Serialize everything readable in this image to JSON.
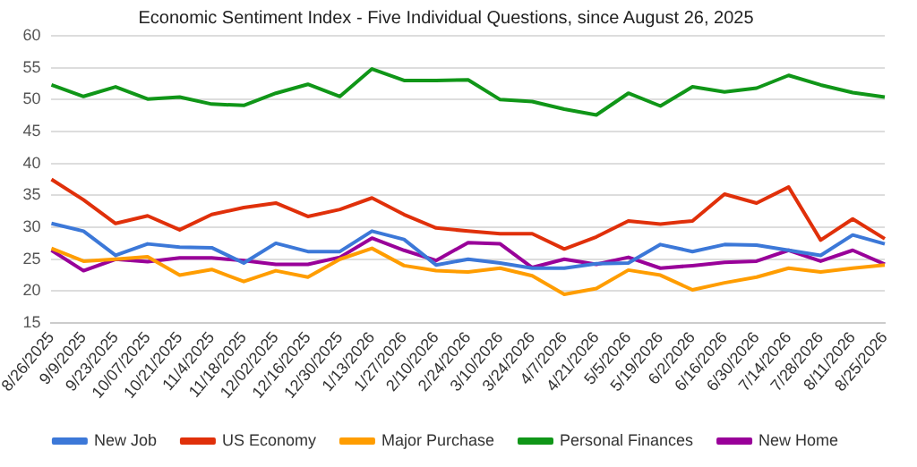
{
  "chart_data": {
    "type": "line",
    "title": "Economic Sentiment Index - Five Individual Questions, since August 26, 2025",
    "categories": [
      "8/26/2025",
      "9/9/2025",
      "9/23/2025",
      "10/07/2025",
      "10/21/2025",
      "11/4/2025",
      "11/18/2025",
      "12/02/2025",
      "12/16/2025",
      "12/30/2025",
      "1/13/2026",
      "1/27/2026",
      "2/10/2026",
      "2/24/2026",
      "3/10/2026",
      "3/24/2026",
      "4/7/2026",
      "4/21/2026",
      "5/5/2026",
      "5/19/2026",
      "6/2/2026",
      "6/16/2026",
      "6/30/2026",
      "7/14/2026",
      "7/28/2026",
      "8/11/2026",
      "8/25/2026"
    ],
    "series": [
      {
        "name": "New Job",
        "color": "#3c78d8",
        "values": [
          30.6,
          29.4,
          25.6,
          27.4,
          26.9,
          26.8,
          24.4,
          27.5,
          26.2,
          26.2,
          29.4,
          28.1,
          24.1,
          25,
          24.4,
          23.6,
          23.6,
          24.3,
          24.4,
          27.3,
          26.2,
          27.3,
          27.2,
          26.4,
          25.6,
          28.8,
          27.4
        ]
      },
      {
        "name": "US Economy",
        "color": "#e0300a",
        "values": [
          37.5,
          34.3,
          30.6,
          31.8,
          29.6,
          32,
          33.1,
          33.8,
          31.7,
          32.8,
          34.6,
          32,
          29.9,
          29.4,
          29,
          29,
          26.6,
          28.5,
          31,
          30.5,
          31,
          35.2,
          33.8,
          36.3,
          28,
          31.3,
          28.2
        ]
      },
      {
        "name": "Major Purchase",
        "color": "#ff9d00",
        "values": [
          26.7,
          24.7,
          25,
          25.4,
          22.5,
          23.4,
          21.5,
          23.2,
          22.2,
          25,
          26.7,
          24,
          23.2,
          23,
          23.6,
          22.4,
          19.5,
          20.4,
          23.3,
          22.5,
          20.2,
          21.3,
          22.2,
          23.6,
          23,
          23.6,
          24.1
        ]
      },
      {
        "name": "Personal Finances",
        "color": "#109618",
        "values": [
          52.3,
          50.5,
          52,
          50.1,
          50.4,
          49.3,
          49.1,
          51,
          52.4,
          50.5,
          54.8,
          53,
          53,
          53.1,
          50,
          49.7,
          48.5,
          47.6,
          51,
          49,
          52,
          51.2,
          51.8,
          53.8,
          52.3,
          51.1,
          50.4
        ]
      },
      {
        "name": "New Home",
        "color": "#990099",
        "values": [
          26.4,
          23.2,
          25,
          24.6,
          25.2,
          25.2,
          24.8,
          24.2,
          24.2,
          25.3,
          28.3,
          26.4,
          24.8,
          27.6,
          27.4,
          23.7,
          25,
          24.2,
          25.3,
          23.6,
          24,
          24.5,
          24.7,
          26.4,
          24.7,
          26.4,
          24.2
        ]
      }
    ],
    "ylim": [
      15,
      60
    ],
    "yticks": [
      15,
      20,
      25,
      30,
      35,
      40,
      45,
      50,
      55,
      60
    ],
    "grid": "y",
    "legend": "bottom",
    "marker": "none",
    "line_style": "solid"
  }
}
